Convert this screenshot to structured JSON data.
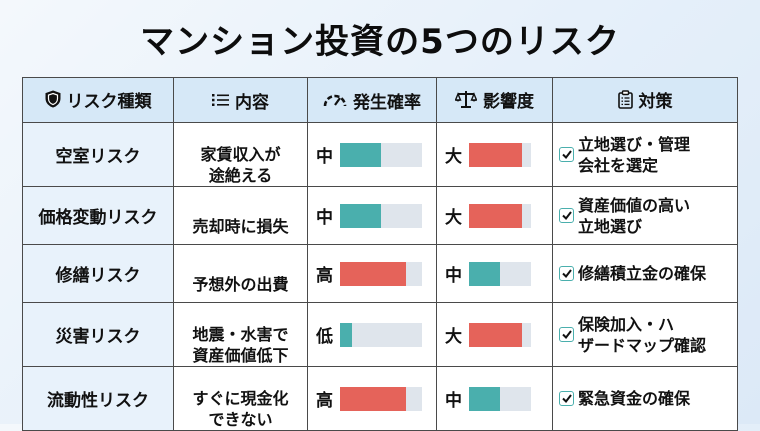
{
  "title": "マンション投資の5つのリスク",
  "colors": {
    "header_bg": "#d6e8f7",
    "type_cell_bg": "#e8f2fb",
    "bar_teal": "#4aafad",
    "bar_red": "#e5635a",
    "bar_track": "#dfe5ec",
    "border": "#4a4a4a"
  },
  "headers": [
    {
      "icon": "shield-icon",
      "label": "リスク種類"
    },
    {
      "icon": "list-icon",
      "label": "内容"
    },
    {
      "icon": "gauge-icon",
      "label": "発生確率"
    },
    {
      "icon": "scale-icon",
      "label": "影響度"
    },
    {
      "icon": "clipboard-icon",
      "label": "対策"
    }
  ],
  "rows": [
    {
      "type": "空室リスク",
      "description": "家賃収入が\n途絶える",
      "probability": {
        "label": "中",
        "percent": 50,
        "color": "teal"
      },
      "impact": {
        "label": "大",
        "percent": 85,
        "color": "red"
      },
      "measure": "立地選び・管理\n会社を選定"
    },
    {
      "type": "価格変動リスク",
      "description": "売却時に損失",
      "probability": {
        "label": "中",
        "percent": 50,
        "color": "teal"
      },
      "impact": {
        "label": "大",
        "percent": 85,
        "color": "red"
      },
      "measure": "資産価値の高い\n立地選び"
    },
    {
      "type": "修繕リスク",
      "description": "予想外の出費",
      "probability": {
        "label": "高",
        "percent": 80,
        "color": "red"
      },
      "impact": {
        "label": "中",
        "percent": 50,
        "color": "teal"
      },
      "measure": "修繕積立金の確保"
    },
    {
      "type": "災害リスク",
      "description": "地震・水害で\n資産価値低下",
      "probability": {
        "label": "低",
        "percent": 15,
        "color": "teal"
      },
      "impact": {
        "label": "大",
        "percent": 85,
        "color": "red"
      },
      "measure": "保険加入・ハ\nザードマップ確認"
    },
    {
      "type": "流動性リスク",
      "description": "すぐに現金化\nできない",
      "probability": {
        "label": "高",
        "percent": 80,
        "color": "red"
      },
      "impact": {
        "label": "中",
        "percent": 50,
        "color": "teal"
      },
      "measure": "緊急資金の確保"
    }
  ]
}
